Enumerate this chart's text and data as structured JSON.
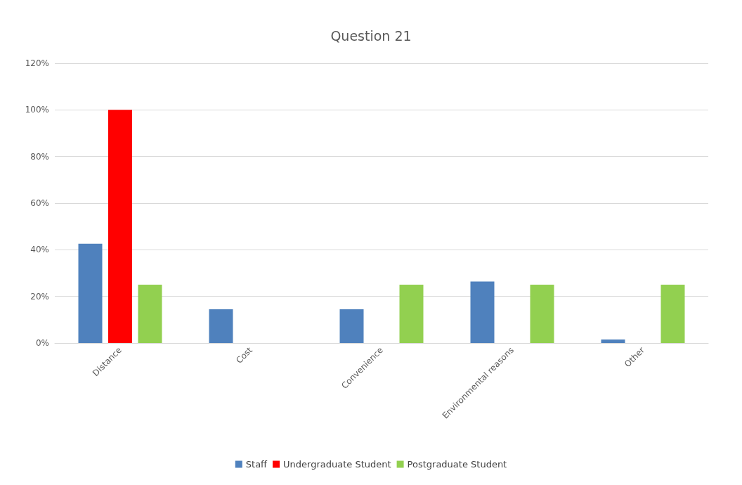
{
  "chart_data": {
    "type": "bar",
    "title": "Question 21",
    "categories": [
      "Distance",
      "Cost",
      "Convenience",
      "Environmental reasons",
      "Other"
    ],
    "series": [
      {
        "name": "Staff",
        "color": "#4f81bd",
        "values": [
          42.6,
          14.5,
          14.5,
          26.4,
          1.5
        ]
      },
      {
        "name": "Undergraduate Student",
        "color": "#ff0000",
        "values": [
          100,
          0,
          0,
          0,
          0
        ]
      },
      {
        "name": "Postgraduate Student",
        "color": "#92d050",
        "values": [
          25,
          0,
          25,
          25,
          25
        ]
      }
    ],
    "ylim": [
      0,
      120
    ],
    "yticks": [
      {
        "value": 0,
        "label": "0%"
      },
      {
        "value": 20,
        "label": "20%"
      },
      {
        "value": 40,
        "label": "40%"
      },
      {
        "value": 60,
        "label": "60%"
      },
      {
        "value": 80,
        "label": "80%"
      },
      {
        "value": 100,
        "label": "100%"
      },
      {
        "value": 120,
        "label": "120%"
      }
    ],
    "grid": "y",
    "legend": "bottom"
  }
}
